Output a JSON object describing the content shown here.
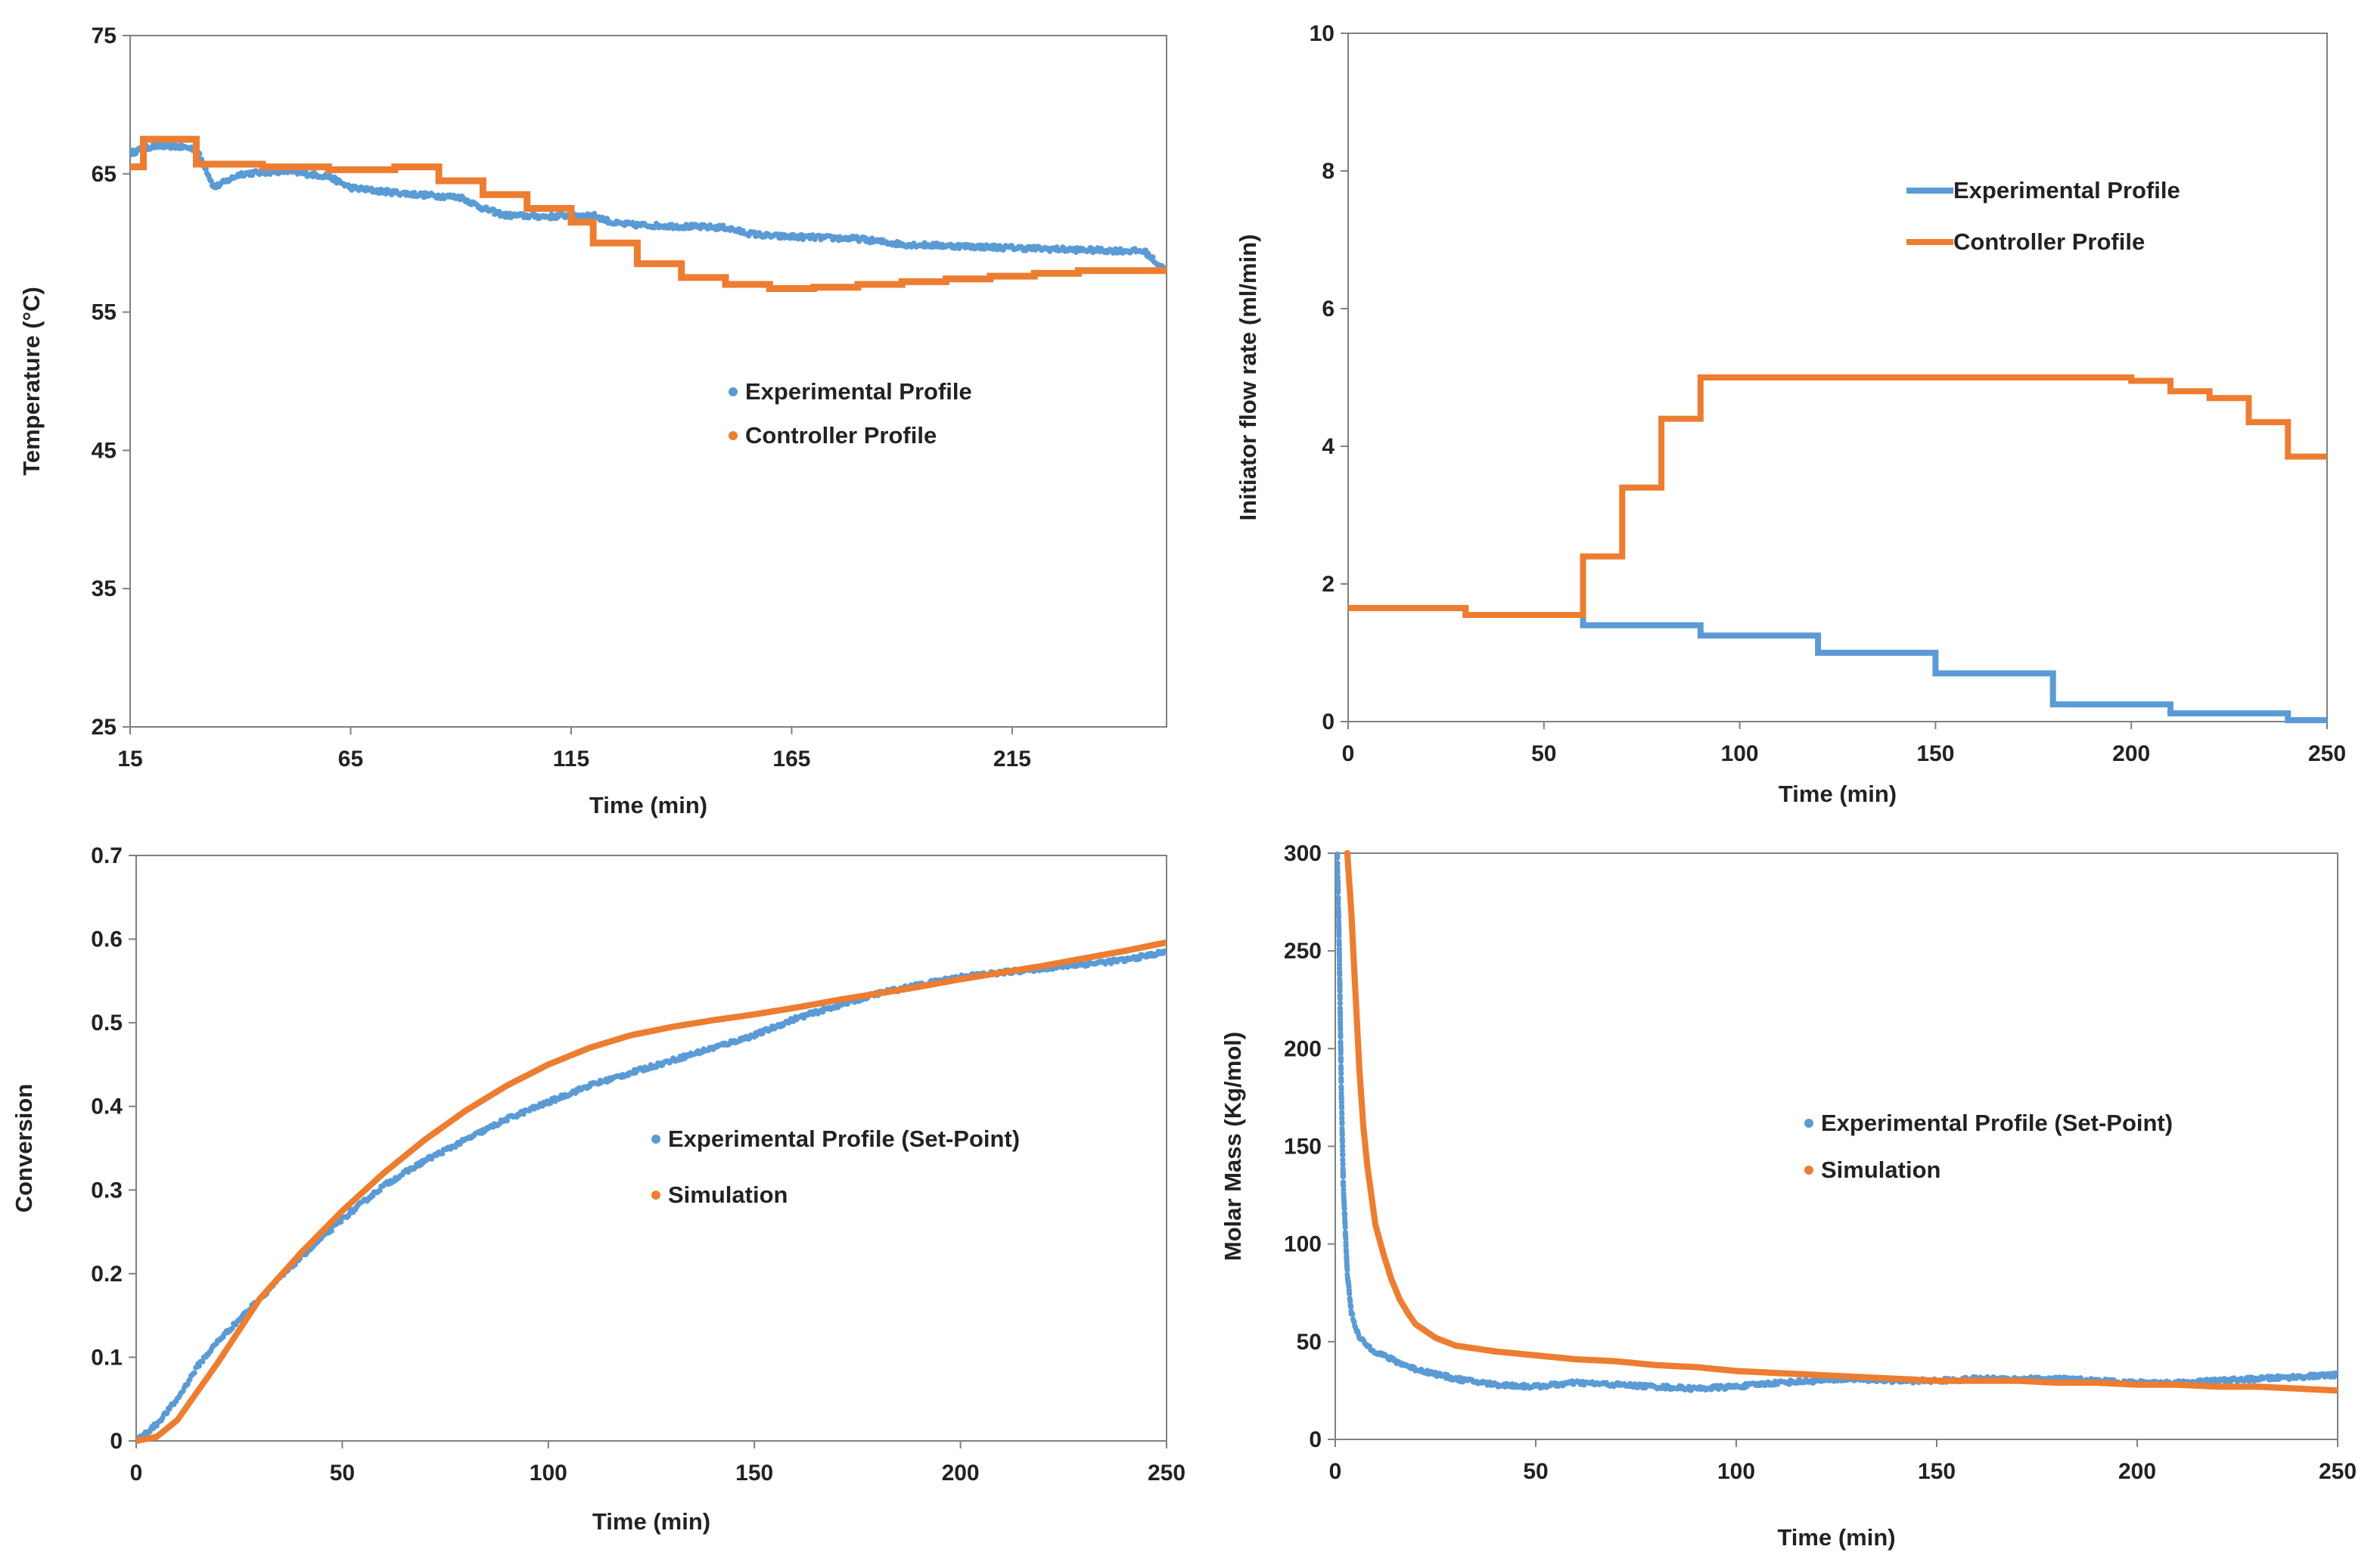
{
  "colors": {
    "blue": "#5b9bd5",
    "orange": "#ed7d31",
    "axis": "#808080",
    "text": "#222222"
  },
  "chart_data": [
    {
      "id": "temperature",
      "type": "scatter",
      "xlabel": "Time (min)",
      "ylabel": "Temperature (°C)",
      "xlim": [
        15,
        250
      ],
      "ylim": [
        25,
        75
      ],
      "xticks": [
        15,
        65,
        115,
        165,
        215
      ],
      "yticks": [
        25,
        35,
        45,
        55,
        65,
        75
      ],
      "legend": {
        "position": "center-right",
        "entries": [
          "Experimental Profile",
          "Controller Profile"
        ]
      },
      "series": [
        {
          "name": "Experimental Profile",
          "color": "#5b9bd5",
          "style": "noisy-dots",
          "x": [
            15,
            20,
            25,
            30,
            32,
            34,
            40,
            50,
            60,
            65,
            70,
            80,
            90,
            95,
            100,
            110,
            115,
            120,
            125,
            130,
            140,
            150,
            155,
            160,
            170,
            180,
            190,
            200,
            210,
            220,
            230,
            245,
            248,
            250
          ],
          "y": [
            66.5,
            67,
            67,
            66.8,
            65.5,
            64,
            65,
            65.2,
            64.8,
            64,
            63.8,
            63.5,
            63.3,
            62.5,
            62,
            61.9,
            62,
            62,
            61.4,
            61.3,
            61.2,
            61.1,
            60.7,
            60.5,
            60.4,
            60.3,
            59.9,
            59.8,
            59.7,
            59.6,
            59.5,
            59.4,
            58.5,
            58
          ]
        },
        {
          "name": "Controller Profile",
          "color": "#ed7d31",
          "style": "step",
          "x": [
            15,
            18,
            30,
            45,
            60,
            75,
            85,
            95,
            105,
            115,
            120,
            130,
            140,
            150,
            160,
            170,
            180,
            190,
            200,
            210,
            220,
            230,
            240,
            250
          ],
          "y": [
            65.5,
            67.5,
            65.7,
            65.5,
            65.3,
            65.5,
            64.5,
            63.5,
            62.5,
            61.5,
            60,
            58.5,
            57.5,
            57.0,
            56.7,
            56.8,
            57.0,
            57.2,
            57.4,
            57.6,
            57.8,
            58.0,
            58.0,
            58.0
          ]
        }
      ]
    },
    {
      "id": "initiator",
      "type": "line",
      "xlabel": "Time (min)",
      "ylabel": "Initiator flow rate (ml/min)",
      "xlim": [
        0,
        250
      ],
      "ylim": [
        0,
        10
      ],
      "xticks": [
        0,
        50,
        100,
        150,
        200,
        250
      ],
      "yticks": [
        0,
        2,
        4,
        6,
        8,
        10
      ],
      "legend": {
        "position": "upper-right",
        "entries": [
          "Experimental Profile",
          "Controller Profile"
        ]
      },
      "series": [
        {
          "name": "Experimental Profile",
          "color": "#5b9bd5",
          "style": "step",
          "x": [
            0,
            30,
            60,
            90,
            120,
            150,
            180,
            210,
            240,
            250
          ],
          "y": [
            1.65,
            1.55,
            1.4,
            1.25,
            1.0,
            0.7,
            0.25,
            0.12,
            0.02,
            0.02
          ]
        },
        {
          "name": "Controller Profile",
          "color": "#ed7d31",
          "style": "step",
          "x": [
            0,
            30,
            60,
            70,
            80,
            90,
            200,
            205,
            210,
            220,
            230,
            240,
            250
          ],
          "y": [
            1.65,
            1.55,
            2.4,
            3.4,
            4.4,
            5.0,
            4.95,
            4.95,
            4.8,
            4.7,
            4.35,
            3.85,
            3.85
          ]
        }
      ]
    },
    {
      "id": "conversion",
      "type": "scatter",
      "xlabel": "Time (min)",
      "ylabel": "Conversion",
      "xlim": [
        0,
        250
      ],
      "ylim": [
        0,
        0.7
      ],
      "xticks": [
        0,
        50,
        100,
        150,
        200,
        250
      ],
      "yticks": [
        0,
        0.1,
        0.2,
        0.3,
        0.4,
        0.5,
        0.6,
        0.7
      ],
      "legend": {
        "position": "center",
        "entries": [
          "Experimental Profile (Set-Point)",
          "Simulation"
        ]
      },
      "series": [
        {
          "name": "Experimental Profile (Set-Point)",
          "color": "#5b9bd5",
          "style": "noisy-dots",
          "x": [
            0,
            5,
            10,
            15,
            20,
            25,
            30,
            40,
            50,
            60,
            70,
            80,
            90,
            100,
            110,
            120,
            130,
            140,
            150,
            160,
            170,
            180,
            190,
            200,
            210,
            220,
            230,
            240,
            250
          ],
          "y": [
            0.0,
            0.02,
            0.05,
            0.09,
            0.12,
            0.145,
            0.17,
            0.22,
            0.265,
            0.305,
            0.335,
            0.36,
            0.385,
            0.405,
            0.425,
            0.44,
            0.455,
            0.47,
            0.485,
            0.505,
            0.52,
            0.535,
            0.545,
            0.555,
            0.56,
            0.565,
            0.57,
            0.575,
            0.585
          ]
        },
        {
          "name": "Simulation",
          "color": "#ed7d31",
          "style": "dense-dots",
          "x": [
            0,
            5,
            10,
            15,
            20,
            30,
            40,
            50,
            60,
            70,
            80,
            90,
            100,
            110,
            120,
            130,
            140,
            150,
            160,
            170,
            180,
            190,
            200,
            210,
            220,
            230,
            240,
            250
          ],
          "y": [
            0.0,
            0.005,
            0.025,
            0.06,
            0.095,
            0.17,
            0.225,
            0.275,
            0.32,
            0.36,
            0.395,
            0.425,
            0.45,
            0.47,
            0.485,
            0.495,
            0.503,
            0.51,
            0.518,
            0.527,
            0.535,
            0.543,
            0.552,
            0.56,
            0.568,
            0.577,
            0.586,
            0.596
          ]
        }
      ]
    },
    {
      "id": "molar-mass",
      "type": "scatter",
      "xlabel": "Time (min)",
      "ylabel": "Molar Mass (Kg/mol)",
      "xlim": [
        0,
        250
      ],
      "ylim": [
        0,
        300
      ],
      "xticks": [
        0,
        50,
        100,
        150,
        200,
        250
      ],
      "yticks": [
        0,
        50,
        100,
        150,
        200,
        250,
        300
      ],
      "legend": {
        "position": "center-right",
        "entries": [
          "Experimental Profile (Set-Point)",
          "Simulation"
        ]
      },
      "series": [
        {
          "name": "Experimental Profile (Set-Point)",
          "color": "#5b9bd5",
          "style": "noisy-dots",
          "x": [
            0.5,
            1,
            1.5,
            2,
            3,
            4,
            5,
            6,
            8,
            10,
            15,
            20,
            30,
            40,
            50,
            60,
            70,
            80,
            90,
            100,
            110,
            120,
            130,
            140,
            150,
            160,
            170,
            180,
            190,
            200,
            210,
            220,
            230,
            240,
            250
          ],
          "y": [
            300,
            250,
            180,
            130,
            85,
            65,
            58,
            52,
            48,
            45,
            40,
            36,
            31,
            28,
            27,
            29,
            28,
            27,
            26,
            27,
            29,
            30,
            31,
            30,
            30,
            31,
            31,
            31,
            30,
            29,
            29,
            30,
            31,
            32,
            33
          ]
        },
        {
          "name": "Simulation",
          "color": "#ed7d31",
          "style": "dense-dots",
          "x": [
            3,
            4,
            5,
            6,
            7,
            8,
            9,
            10,
            12,
            14,
            16,
            18,
            20,
            25,
            30,
            40,
            50,
            60,
            70,
            80,
            90,
            100,
            110,
            120,
            130,
            140,
            150,
            160,
            170,
            180,
            190,
            200,
            210,
            220,
            230,
            240,
            250
          ],
          "y": [
            300,
            270,
            230,
            190,
            160,
            140,
            125,
            110,
            95,
            82,
            72,
            65,
            59,
            52,
            48,
            45,
            43,
            41,
            40,
            38,
            37,
            35,
            34,
            33,
            32,
            31,
            30,
            30,
            30,
            29,
            29,
            28,
            28,
            27,
            27,
            26,
            25
          ]
        }
      ]
    }
  ]
}
